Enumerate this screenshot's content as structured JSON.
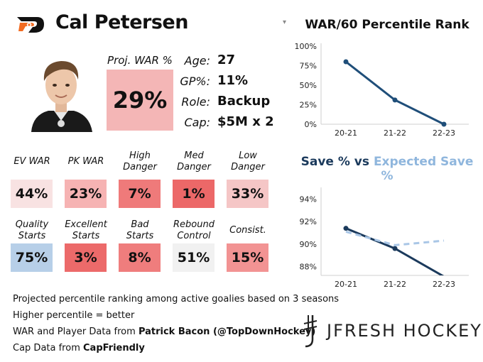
{
  "header": {
    "logo_icon": "flyers-logo",
    "player_name": "Cal Petersen",
    "dropdown_glyph": "▾"
  },
  "headshot": {
    "icon": "player-headshot-photo"
  },
  "projection": {
    "label": "Proj. WAR %",
    "value": "29%",
    "color": "#f4b6b6"
  },
  "bio": [
    {
      "key": "Age:",
      "value": "27"
    },
    {
      "key": "GP%:",
      "value": "11%"
    },
    {
      "key": "Role:",
      "value": "Backup"
    },
    {
      "key": "Cap:",
      "value": "$5M x 2"
    }
  ],
  "stats_row1": [
    {
      "label": [
        "EV WAR"
      ],
      "value": "44%",
      "color": "#f8e2e2"
    },
    {
      "label": [
        "PK WAR"
      ],
      "value": "23%",
      "color": "#f6b3b3"
    },
    {
      "label": [
        "High",
        "Danger"
      ],
      "value": "7%",
      "color": "#ef7a7a"
    },
    {
      "label": [
        "Med",
        "Danger"
      ],
      "value": "1%",
      "color": "#ec6868"
    },
    {
      "label": [
        "Low",
        "Danger"
      ],
      "value": "33%",
      "color": "#f5c6c6"
    }
  ],
  "stats_row2": [
    {
      "label": [
        "Quality",
        "Starts"
      ],
      "value": "75%",
      "color": "#b7cfe8"
    },
    {
      "label": [
        "Excellent",
        "Starts"
      ],
      "value": "3%",
      "color": "#ec6a6a"
    },
    {
      "label": [
        "Bad",
        "Starts"
      ],
      "value": "8%",
      "color": "#ef7d7d"
    },
    {
      "label": [
        "Rebound",
        "Control"
      ],
      "value": "51%",
      "color": "#f1f1f1"
    },
    {
      "label": [
        "Consist."
      ],
      "value": "15%",
      "color": "#f29393"
    }
  ],
  "footer": {
    "line1": "Projected percentile ranking among active goalies based on 3 seasons",
    "line2": "Higher percentile = better",
    "line3_prefix": "WAR and Player Data from ",
    "line3_source": "Patrick Bacon (@TopDownHockey)",
    "line4_prefix": "Cap Data from ",
    "line4_source": "CapFriendly"
  },
  "brand": {
    "text": "JFRESH HOCKEY",
    "mark_icon": "jfresh-logo-mark"
  },
  "chart_data": [
    {
      "type": "line",
      "title": "WAR/60 Percentile Rank",
      "x": [
        "20-21",
        "21-22",
        "22-23"
      ],
      "y_ticks": [
        "0%",
        "25%",
        "50%",
        "75%",
        "100%"
      ],
      "ylim": [
        0,
        100
      ],
      "grid": false,
      "series": [
        {
          "values": [
            80,
            31,
            0
          ],
          "color": "#1f4e79",
          "style": "solid",
          "markers": true
        }
      ]
    },
    {
      "type": "line",
      "title": "Save % vs Expected Save %",
      "title_parts": [
        {
          "text": "Save %",
          "color": "#1b3a5c"
        },
        {
          "text": " vs ",
          "color": "#1b3a5c"
        },
        {
          "text": "Expected Save %",
          "color": "#8fb6dd"
        }
      ],
      "x": [
        "20-21",
        "21-22",
        "22-23"
      ],
      "y_ticks": [
        "88%",
        "90%",
        "92%",
        "94%"
      ],
      "ylim": [
        87.2,
        94.8
      ],
      "grid": false,
      "series": [
        {
          "name": "Save %",
          "values": [
            91.4,
            89.6,
            87.1
          ],
          "color": "#1b3a5c",
          "style": "solid",
          "markers": true
        },
        {
          "name": "Expected Save %",
          "values": [
            91.1,
            89.9,
            90.3
          ],
          "color": "#a9c6e6",
          "style": "dashed",
          "markers": false
        }
      ]
    }
  ]
}
